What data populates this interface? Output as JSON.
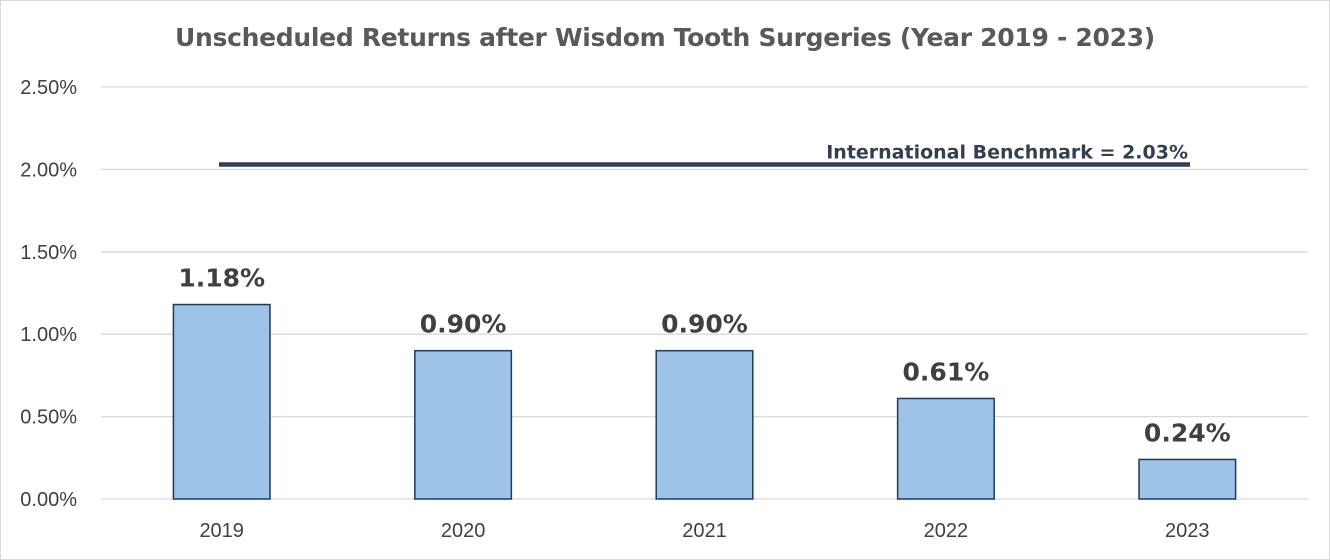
{
  "chart_data": {
    "type": "bar",
    "title": "Unscheduled Returns after Wisdom Tooth Surgeries (Year 2019 - 2023)",
    "xlabel": "",
    "ylabel": "",
    "categories": [
      "2019",
      "2020",
      "2021",
      "2022",
      "2023"
    ],
    "values": [
      1.18,
      0.9,
      0.9,
      0.61,
      0.24
    ],
    "data_labels": [
      "1.18%",
      "0.90%",
      "0.90%",
      "0.61%",
      "0.24%"
    ],
    "ylim": [
      0,
      2.5
    ],
    "yticks": [
      0,
      0.5,
      1.0,
      1.5,
      2.0,
      2.5
    ],
    "ytick_labels": [
      "0.00%",
      "0.50%",
      "1.00%",
      "1.50%",
      "2.00%",
      "2.50%"
    ],
    "grid": true,
    "legend": "none",
    "benchmark": {
      "value": 2.03,
      "label": "International Benchmark = 2.03%",
      "color": "#333f50"
    },
    "colors": {
      "bar_fill": "#9dc3e6",
      "bar_stroke": "#1f3864",
      "grid": "#d9d9d9",
      "text": "#404040",
      "title": "#595959"
    }
  }
}
